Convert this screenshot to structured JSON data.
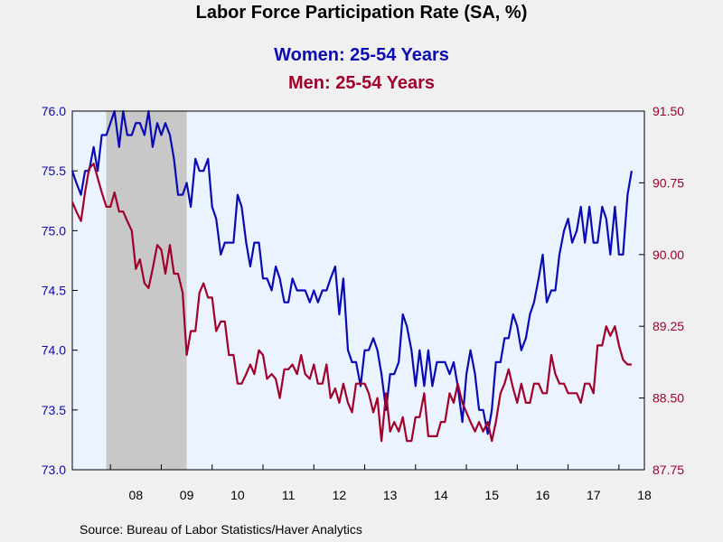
{
  "title": "Labor Force Participation Rate (SA, %)",
  "source": "Source:  Bureau of Labor Statistics/Haver Analytics",
  "colors": {
    "women": "#0a0ab4",
    "men": "#a0002a",
    "recession": "#c8c8c8",
    "plot_bg": "#eaf3ff",
    "background": "#f0f0f0"
  },
  "chart_data": {
    "type": "line",
    "title": "Labor Force Participation Rate (SA, %)",
    "recession": {
      "start": 2007.917,
      "end": 2009.5
    },
    "x_range": [
      2007.25,
      2018.5
    ],
    "x_tick_labels": [
      {
        "x": 2008.0,
        "label": "08"
      },
      {
        "x": 2009.0,
        "label": "09"
      },
      {
        "x": 2010.0,
        "label": "10"
      },
      {
        "x": 2011.0,
        "label": "11"
      },
      {
        "x": 2012.0,
        "label": "12"
      },
      {
        "x": 2013.0,
        "label": "13"
      },
      {
        "x": 2014.0,
        "label": "14"
      },
      {
        "x": 2015.0,
        "label": "15"
      },
      {
        "x": 2016.0,
        "label": "16"
      },
      {
        "x": 2017.0,
        "label": "17"
      },
      {
        "x": 2018.0,
        "label": "18"
      }
    ],
    "left_axis": {
      "min": 73.0,
      "max": 76.0,
      "ticks": [
        "73.0",
        "73.5",
        "74.0",
        "74.5",
        "75.0",
        "75.5",
        "76.0"
      ]
    },
    "right_axis": {
      "min": 87.75,
      "max": 91.5,
      "ticks": [
        "87.75",
        "88.50",
        "89.25",
        "90.00",
        "90.75",
        "91.50"
      ]
    },
    "series": [
      {
        "name": "Women: 25-54 Years",
        "axis": "left",
        "points": [
          [
            2007.25,
            75.5
          ],
          [
            2007.33,
            75.4
          ],
          [
            2007.42,
            75.3
          ],
          [
            2007.5,
            75.5
          ],
          [
            2007.58,
            75.5
          ],
          [
            2007.67,
            75.7
          ],
          [
            2007.75,
            75.5
          ],
          [
            2007.83,
            75.8
          ],
          [
            2007.92,
            75.8
          ],
          [
            2008.0,
            75.9
          ],
          [
            2008.08,
            76.0
          ],
          [
            2008.17,
            75.7
          ],
          [
            2008.25,
            76.0
          ],
          [
            2008.33,
            75.8
          ],
          [
            2008.42,
            75.8
          ],
          [
            2008.5,
            75.9
          ],
          [
            2008.58,
            75.9
          ],
          [
            2008.67,
            75.8
          ],
          [
            2008.75,
            76.0
          ],
          [
            2008.83,
            75.7
          ],
          [
            2008.92,
            75.9
          ],
          [
            2009.0,
            75.8
          ],
          [
            2009.08,
            75.9
          ],
          [
            2009.17,
            75.8
          ],
          [
            2009.25,
            75.6
          ],
          [
            2009.33,
            75.3
          ],
          [
            2009.42,
            75.3
          ],
          [
            2009.5,
            75.4
          ],
          [
            2009.58,
            75.2
          ],
          [
            2009.67,
            75.6
          ],
          [
            2009.75,
            75.5
          ],
          [
            2009.83,
            75.5
          ],
          [
            2009.92,
            75.6
          ],
          [
            2010.0,
            75.2
          ],
          [
            2010.08,
            75.1
          ],
          [
            2010.17,
            74.8
          ],
          [
            2010.25,
            74.9
          ],
          [
            2010.33,
            74.9
          ],
          [
            2010.42,
            74.9
          ],
          [
            2010.5,
            75.3
          ],
          [
            2010.58,
            75.2
          ],
          [
            2010.67,
            74.9
          ],
          [
            2010.75,
            74.7
          ],
          [
            2010.83,
            74.9
          ],
          [
            2010.92,
            74.9
          ],
          [
            2011.0,
            74.6
          ],
          [
            2011.08,
            74.6
          ],
          [
            2011.17,
            74.5
          ],
          [
            2011.25,
            74.7
          ],
          [
            2011.33,
            74.6
          ],
          [
            2011.42,
            74.4
          ],
          [
            2011.5,
            74.4
          ],
          [
            2011.58,
            74.6
          ],
          [
            2011.67,
            74.5
          ],
          [
            2011.75,
            74.5
          ],
          [
            2011.83,
            74.5
          ],
          [
            2011.92,
            74.4
          ],
          [
            2012.0,
            74.5
          ],
          [
            2012.08,
            74.4
          ],
          [
            2012.17,
            74.5
          ],
          [
            2012.25,
            74.5
          ],
          [
            2012.33,
            74.6
          ],
          [
            2012.42,
            74.7
          ],
          [
            2012.5,
            74.3
          ],
          [
            2012.58,
            74.6
          ],
          [
            2012.67,
            74.0
          ],
          [
            2012.75,
            73.9
          ],
          [
            2012.83,
            73.9
          ],
          [
            2012.92,
            73.7
          ],
          [
            2013.0,
            74.0
          ],
          [
            2013.08,
            74.0
          ],
          [
            2013.17,
            74.1
          ],
          [
            2013.25,
            74.0
          ],
          [
            2013.33,
            73.8
          ],
          [
            2013.42,
            73.5
          ],
          [
            2013.5,
            73.8
          ],
          [
            2013.58,
            73.8
          ],
          [
            2013.67,
            73.9
          ],
          [
            2013.75,
            74.3
          ],
          [
            2013.83,
            74.2
          ],
          [
            2013.92,
            74.0
          ],
          [
            2014.0,
            73.7
          ],
          [
            2014.08,
            74.0
          ],
          [
            2014.17,
            73.7
          ],
          [
            2014.25,
            74.0
          ],
          [
            2014.33,
            73.7
          ],
          [
            2014.42,
            73.9
          ],
          [
            2014.5,
            73.9
          ],
          [
            2014.58,
            73.9
          ],
          [
            2014.67,
            73.8
          ],
          [
            2014.75,
            73.9
          ],
          [
            2014.83,
            73.7
          ],
          [
            2014.92,
            73.4
          ],
          [
            2015.0,
            73.8
          ],
          [
            2015.08,
            74.0
          ],
          [
            2015.17,
            73.8
          ],
          [
            2015.25,
            73.5
          ],
          [
            2015.33,
            73.5
          ],
          [
            2015.42,
            73.3
          ],
          [
            2015.5,
            73.5
          ],
          [
            2015.58,
            73.9
          ],
          [
            2015.67,
            73.9
          ],
          [
            2015.75,
            74.1
          ],
          [
            2015.83,
            74.1
          ],
          [
            2015.92,
            74.3
          ],
          [
            2016.0,
            74.2
          ],
          [
            2016.08,
            74.0
          ],
          [
            2016.17,
            74.1
          ],
          [
            2016.25,
            74.3
          ],
          [
            2016.33,
            74.4
          ],
          [
            2016.42,
            74.6
          ],
          [
            2016.5,
            74.8
          ],
          [
            2016.58,
            74.4
          ],
          [
            2016.67,
            74.5
          ],
          [
            2016.75,
            74.5
          ],
          [
            2016.83,
            74.8
          ],
          [
            2016.92,
            75.0
          ],
          [
            2017.0,
            75.1
          ],
          [
            2017.08,
            74.9
          ],
          [
            2017.17,
            75.0
          ],
          [
            2017.25,
            75.2
          ],
          [
            2017.33,
            74.9
          ],
          [
            2017.42,
            75.2
          ],
          [
            2017.5,
            74.9
          ],
          [
            2017.58,
            74.9
          ],
          [
            2017.67,
            75.2
          ],
          [
            2017.75,
            75.1
          ],
          [
            2017.83,
            74.8
          ],
          [
            2017.92,
            75.2
          ],
          [
            2018.0,
            74.8
          ],
          [
            2018.08,
            74.8
          ],
          [
            2018.17,
            75.3
          ],
          [
            2018.25,
            75.5
          ]
        ]
      },
      {
        "name": "Men: 25-54 Years",
        "axis": "right",
        "points": [
          [
            2007.25,
            90.55
          ],
          [
            2007.33,
            90.45
          ],
          [
            2007.42,
            90.35
          ],
          [
            2007.5,
            90.65
          ],
          [
            2007.58,
            90.9
          ],
          [
            2007.67,
            90.95
          ],
          [
            2007.75,
            90.8
          ],
          [
            2007.83,
            90.65
          ],
          [
            2007.92,
            90.5
          ],
          [
            2008.0,
            90.5
          ],
          [
            2008.08,
            90.65
          ],
          [
            2008.17,
            90.45
          ],
          [
            2008.25,
            90.45
          ],
          [
            2008.33,
            90.35
          ],
          [
            2008.42,
            90.25
          ],
          [
            2008.5,
            89.85
          ],
          [
            2008.58,
            89.95
          ],
          [
            2008.67,
            89.7
          ],
          [
            2008.75,
            89.65
          ],
          [
            2008.83,
            89.85
          ],
          [
            2008.92,
            90.1
          ],
          [
            2009.0,
            90.05
          ],
          [
            2009.08,
            89.8
          ],
          [
            2009.17,
            90.1
          ],
          [
            2009.25,
            89.8
          ],
          [
            2009.33,
            89.8
          ],
          [
            2009.42,
            89.6
          ],
          [
            2009.5,
            88.95
          ],
          [
            2009.58,
            89.2
          ],
          [
            2009.67,
            89.2
          ],
          [
            2009.75,
            89.6
          ],
          [
            2009.83,
            89.7
          ],
          [
            2009.92,
            89.55
          ],
          [
            2010.0,
            89.55
          ],
          [
            2010.08,
            89.2
          ],
          [
            2010.17,
            89.3
          ],
          [
            2010.25,
            89.3
          ],
          [
            2010.33,
            88.95
          ],
          [
            2010.42,
            88.95
          ],
          [
            2010.5,
            88.65
          ],
          [
            2010.58,
            88.65
          ],
          [
            2010.67,
            88.75
          ],
          [
            2010.75,
            88.85
          ],
          [
            2010.83,
            88.75
          ],
          [
            2010.92,
            89.0
          ],
          [
            2011.0,
            88.95
          ],
          [
            2011.08,
            88.7
          ],
          [
            2011.17,
            88.75
          ],
          [
            2011.25,
            88.7
          ],
          [
            2011.33,
            88.5
          ],
          [
            2011.42,
            88.8
          ],
          [
            2011.5,
            88.8
          ],
          [
            2011.58,
            88.85
          ],
          [
            2011.67,
            88.75
          ],
          [
            2011.75,
            88.95
          ],
          [
            2011.83,
            88.75
          ],
          [
            2011.92,
            88.7
          ],
          [
            2012.0,
            88.85
          ],
          [
            2012.08,
            88.65
          ],
          [
            2012.17,
            88.65
          ],
          [
            2012.25,
            88.85
          ],
          [
            2012.33,
            88.5
          ],
          [
            2012.42,
            88.6
          ],
          [
            2012.5,
            88.45
          ],
          [
            2012.58,
            88.65
          ],
          [
            2012.67,
            88.45
          ],
          [
            2012.75,
            88.35
          ],
          [
            2012.83,
            88.65
          ],
          [
            2012.92,
            88.65
          ],
          [
            2013.0,
            88.65
          ],
          [
            2013.08,
            88.55
          ],
          [
            2013.17,
            88.35
          ],
          [
            2013.25,
            88.5
          ],
          [
            2013.33,
            88.05
          ],
          [
            2013.42,
            88.55
          ],
          [
            2013.5,
            88.15
          ],
          [
            2013.58,
            88.25
          ],
          [
            2013.67,
            88.15
          ],
          [
            2013.75,
            88.3
          ],
          [
            2013.83,
            88.05
          ],
          [
            2013.92,
            88.05
          ],
          [
            2014.0,
            88.3
          ],
          [
            2014.08,
            88.3
          ],
          [
            2014.17,
            88.55
          ],
          [
            2014.25,
            88.1
          ],
          [
            2014.33,
            88.1
          ],
          [
            2014.42,
            88.1
          ],
          [
            2014.5,
            88.25
          ],
          [
            2014.58,
            88.25
          ],
          [
            2014.67,
            88.55
          ],
          [
            2014.75,
            88.45
          ],
          [
            2014.83,
            88.65
          ],
          [
            2014.92,
            88.45
          ],
          [
            2015.0,
            88.35
          ],
          [
            2015.08,
            88.25
          ],
          [
            2015.17,
            88.15
          ],
          [
            2015.25,
            88.25
          ],
          [
            2015.33,
            88.15
          ],
          [
            2015.42,
            88.25
          ],
          [
            2015.5,
            88.05
          ],
          [
            2015.58,
            88.25
          ],
          [
            2015.67,
            88.55
          ],
          [
            2015.75,
            88.65
          ],
          [
            2015.83,
            88.8
          ],
          [
            2015.92,
            88.6
          ],
          [
            2016.0,
            88.45
          ],
          [
            2016.08,
            88.65
          ],
          [
            2016.17,
            88.45
          ],
          [
            2016.25,
            88.45
          ],
          [
            2016.33,
            88.65
          ],
          [
            2016.42,
            88.65
          ],
          [
            2016.5,
            88.55
          ],
          [
            2016.58,
            88.55
          ],
          [
            2016.67,
            88.95
          ],
          [
            2016.75,
            88.75
          ],
          [
            2016.83,
            88.65
          ],
          [
            2016.92,
            88.65
          ],
          [
            2017.0,
            88.55
          ],
          [
            2017.08,
            88.55
          ],
          [
            2017.17,
            88.55
          ],
          [
            2017.25,
            88.45
          ],
          [
            2017.33,
            88.65
          ],
          [
            2017.42,
            88.65
          ],
          [
            2017.5,
            88.55
          ],
          [
            2017.58,
            89.05
          ],
          [
            2017.67,
            89.05
          ],
          [
            2017.75,
            89.25
          ],
          [
            2017.83,
            89.15
          ],
          [
            2017.92,
            89.25
          ],
          [
            2018.0,
            89.05
          ],
          [
            2018.08,
            88.9
          ],
          [
            2018.17,
            88.85
          ],
          [
            2018.25,
            88.85
          ]
        ]
      }
    ]
  }
}
